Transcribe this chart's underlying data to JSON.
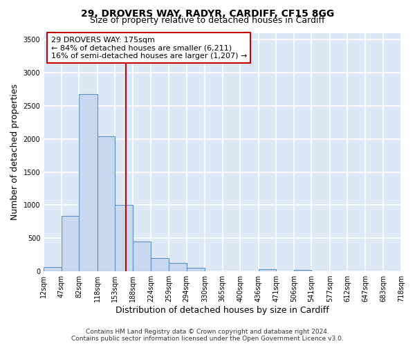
{
  "title_line1": "29, DROVERS WAY, RADYR, CARDIFF, CF15 8GG",
  "title_line2": "Size of property relative to detached houses in Cardiff",
  "xlabel": "Distribution of detached houses by size in Cardiff",
  "ylabel": "Number of detached properties",
  "bar_color": "#c8d8ee",
  "bar_edge_color": "#6090c0",
  "bin_edges": [
    12,
    47,
    82,
    118,
    153,
    188,
    224,
    259,
    294,
    330,
    365,
    400,
    436,
    471,
    506,
    541,
    577,
    612,
    647,
    683,
    718
  ],
  "bar_heights": [
    60,
    840,
    2680,
    2040,
    1000,
    450,
    200,
    130,
    50,
    0,
    0,
    0,
    30,
    0,
    20,
    0,
    0,
    0,
    0,
    0
  ],
  "red_line_x": 175,
  "annotation_line1": "29 DROVERS WAY: 175sqm",
  "annotation_line2": "← 84% of detached houses are smaller (6,211)",
  "annotation_line3": "16% of semi-detached houses are larger (1,207) →",
  "annotation_box_color": "#ffffff",
  "annotation_box_edge": "#cc0000",
  "ylim": [
    0,
    3600
  ],
  "yticks": [
    0,
    500,
    1000,
    1500,
    2000,
    2500,
    3000,
    3500
  ],
  "footer_line1": "Contains HM Land Registry data © Crown copyright and database right 2024.",
  "footer_line2": "Contains public sector information licensed under the Open Government Licence v3.0.",
  "fig_bg_color": "#ffffff",
  "plot_bg_color": "#dce8f5",
  "grid_color": "#ffffff",
  "title_fontsize": 10,
  "subtitle_fontsize": 9,
  "tick_label_fontsize": 7,
  "axis_label_fontsize": 9,
  "footer_fontsize": 6.5,
  "annotation_fontsize": 8
}
